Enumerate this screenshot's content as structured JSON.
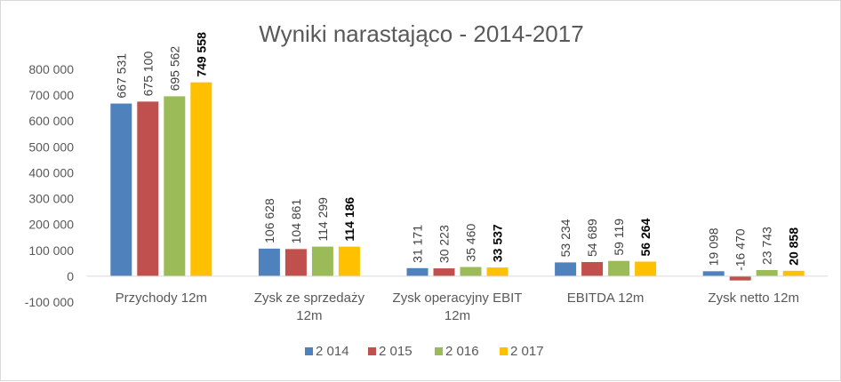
{
  "chart_data": {
    "type": "bar",
    "title": "Wyniki narastająco - 2014-2017",
    "categories": [
      [
        "Przychody 12m"
      ],
      [
        "Zysk ze sprzedaży",
        "12m"
      ],
      [
        "Zysk operacyjny EBIT",
        "12m"
      ],
      [
        "EBITDA 12m"
      ],
      [
        "Zysk netto 12m"
      ]
    ],
    "series": [
      {
        "name": "2 014",
        "color": "#4f81bd",
        "values": [
          667531,
          106628,
          31171,
          53234,
          19098
        ],
        "labels": [
          "667 531",
          "106 628",
          "31 171",
          "53 234",
          "19 098"
        ]
      },
      {
        "name": "2 015",
        "color": "#c0504d",
        "values": [
          675100,
          104861,
          30223,
          54689,
          -16470
        ],
        "labels": [
          "675 100",
          "104 861",
          "30 223",
          "54 689",
          "-16 470"
        ]
      },
      {
        "name": "2 016",
        "color": "#9bbb59",
        "values": [
          695562,
          114299,
          35460,
          59119,
          23743
        ],
        "labels": [
          "695 562",
          "114 299",
          "35 460",
          "59 119",
          "23 743"
        ]
      },
      {
        "name": "2 017",
        "color": "#ffc000",
        "values": [
          749558,
          114186,
          33537,
          56264,
          20858
        ],
        "labels": [
          "749 558",
          "114 186",
          "33 537",
          "56 264",
          "20 858"
        ],
        "label_bold": true
      }
    ],
    "ylim": [
      -100000,
      800000
    ],
    "yticks": [
      -100000,
      0,
      100000,
      200000,
      300000,
      400000,
      500000,
      600000,
      700000,
      800000
    ],
    "ytick_labels": [
      "-100 000",
      "0",
      "100 000",
      "200 000",
      "300 000",
      "400 000",
      "500 000",
      "600 000",
      "700 000",
      "800 000"
    ],
    "grid": false,
    "legend": "bottom",
    "xlabel": "",
    "ylabel": ""
  }
}
